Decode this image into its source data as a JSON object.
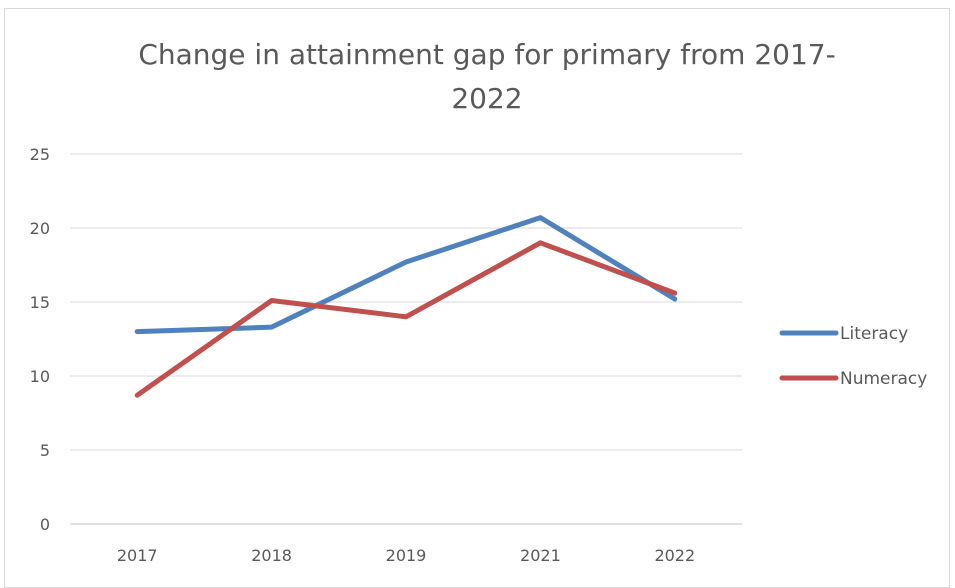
{
  "chart_data": {
    "type": "line",
    "title_lines": [
      "Change in attainment gap for primary from 2017-",
      "2022"
    ],
    "categories": [
      "2017",
      "2018",
      "2019",
      "2021",
      "2022"
    ],
    "series": [
      {
        "name": "Literacy",
        "color": "#4f81bd",
        "values": [
          13.0,
          13.3,
          17.7,
          20.7,
          15.2
        ]
      },
      {
        "name": "Numeracy",
        "color": "#c0504d",
        "values": [
          8.7,
          15.1,
          14.0,
          19.0,
          15.6
        ]
      }
    ],
    "ylim": [
      0,
      25
    ],
    "yticks": [
      0,
      5,
      10,
      15,
      20,
      25
    ],
    "grid": true,
    "legend_position": "right"
  }
}
